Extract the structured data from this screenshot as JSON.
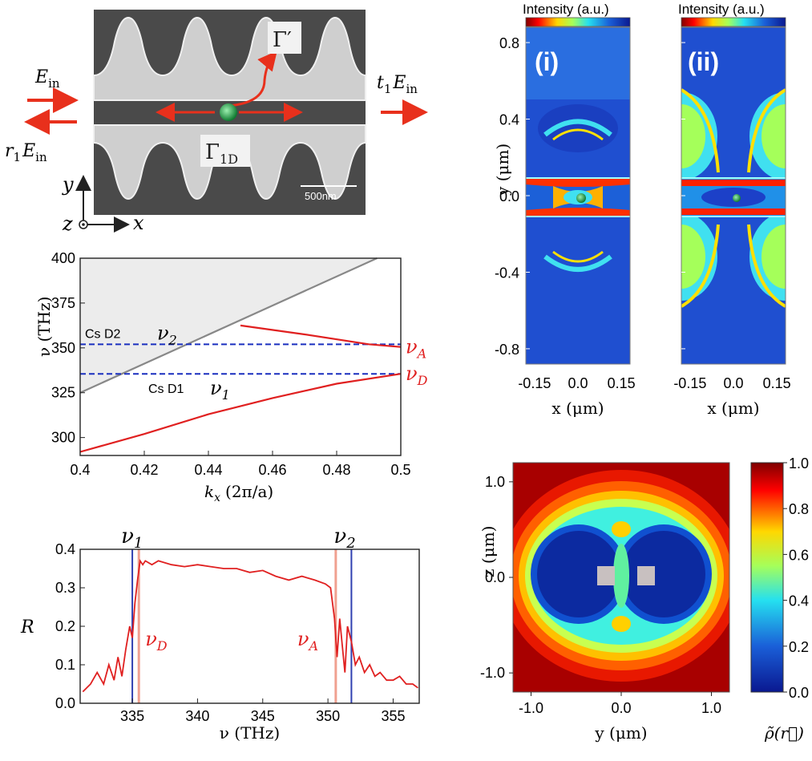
{
  "schematic": {
    "e_in": "E",
    "e_in_sub": "in",
    "r_label": "r",
    "r_sub": "1",
    "r_e": "E",
    "r_e_sub": "in",
    "t_label": "t",
    "t_sub": "1",
    "t_e": "E",
    "t_e_sub": "in",
    "gamma_prime": "Γ′",
    "gamma_1d": "Γ",
    "gamma_1d_sub": "1D",
    "scale_bar": "500nm",
    "axis_y": "y",
    "axis_x": "x",
    "axis_z": "z",
    "colors": {
      "arrow": "#e8301c",
      "atom": "#1fa04a",
      "sem_dark": "#4a4a4a",
      "sem_light": "#c9c9c9"
    }
  },
  "chart_data": [
    {
      "type": "line",
      "id": "band",
      "title": "",
      "xlabel": "k",
      "xlabel_sub": "x",
      "xlabel_unit": "(2π/a)",
      "ylabel": "ν (THz)",
      "xlim": [
        0.4,
        0.5
      ],
      "ylim": [
        290,
        400
      ],
      "xticks": [
        "0.4",
        "0.42",
        "0.44",
        "0.46",
        "0.48",
        "0.5"
      ],
      "yticks": [
        "300",
        "325",
        "350",
        "375",
        "400"
      ],
      "light_line": {
        "x": [
          0.4,
          0.5
        ],
        "y": [
          325,
          406
        ]
      },
      "lower_band": {
        "x": [
          0.4,
          0.42,
          0.44,
          0.46,
          0.48,
          0.5
        ],
        "y": [
          292,
          302,
          313,
          322,
          330,
          335.5
        ]
      },
      "upper_band": {
        "x": [
          0.45,
          0.47,
          0.49,
          0.5
        ],
        "y": [
          362.5,
          357.5,
          352,
          350.5
        ]
      },
      "hlines": [
        {
          "y": 352,
          "label": "Cs D2",
          "sym": "ν",
          "sub": "2"
        },
        {
          "y": 335.5,
          "label": "Cs D1",
          "sym": "ν",
          "sub": "1"
        }
      ],
      "band_labels": [
        {
          "sym": "ν",
          "sub": "A",
          "y": 350.5
        },
        {
          "sym": "ν",
          "sub": "D",
          "y": 335.5
        }
      ]
    },
    {
      "type": "line",
      "id": "reflectance",
      "xlabel": "ν (THz)",
      "ylabel": "R",
      "xlim": [
        331,
        357
      ],
      "ylim": [
        0,
        0.4
      ],
      "xticks": [
        "335",
        "340",
        "345",
        "350",
        "355"
      ],
      "yticks": [
        "0.0",
        "0.1",
        "0.2",
        "0.3",
        "0.4"
      ],
      "series_x": [
        331.2,
        331.8,
        332.3,
        332.8,
        333.2,
        333.6,
        333.9,
        334.2,
        334.5,
        334.8,
        335.0,
        335.2,
        335.4,
        335.6,
        335.8,
        336.0,
        336.5,
        337,
        338,
        339,
        340,
        341,
        342,
        343,
        344,
        345,
        346,
        347,
        348,
        349,
        349.8,
        350.2,
        350.5,
        350.7,
        350.9,
        351.1,
        351.3,
        351.5,
        351.8,
        352.1,
        352.4,
        352.8,
        353.2,
        353.6,
        354,
        354.5,
        355,
        355.5,
        356,
        356.5,
        356.9
      ],
      "series_y": [
        0.03,
        0.05,
        0.08,
        0.05,
        0.1,
        0.06,
        0.12,
        0.07,
        0.14,
        0.2,
        0.17,
        0.26,
        0.32,
        0.37,
        0.36,
        0.37,
        0.36,
        0.37,
        0.36,
        0.355,
        0.36,
        0.355,
        0.35,
        0.35,
        0.34,
        0.345,
        0.33,
        0.32,
        0.33,
        0.32,
        0.31,
        0.3,
        0.22,
        0.12,
        0.22,
        0.15,
        0.08,
        0.2,
        0.16,
        0.1,
        0.12,
        0.08,
        0.1,
        0.07,
        0.08,
        0.06,
        0.06,
        0.07,
        0.05,
        0.05,
        0.04
      ],
      "vlines_blue": [
        {
          "x": 335.0,
          "sym": "ν",
          "sub": "1"
        },
        {
          "x": 351.8,
          "sym": "ν",
          "sub": "2"
        }
      ],
      "vlines_red": [
        {
          "x": 335.5,
          "sym": "ν",
          "sub": "D"
        },
        {
          "x": 350.6,
          "sym": "ν",
          "sub": "A"
        }
      ]
    },
    {
      "type": "heatmap",
      "id": "intensity-maps",
      "colorbar_label": "Intensity (a.u.)",
      "panels": [
        "(i)",
        "(ii)"
      ],
      "xlabel": "x (μm)",
      "ylabel": "y (μm)",
      "xticks": [
        "-0.15",
        "0.0",
        "0.15"
      ],
      "yticks": [
        "0.8",
        "0.4",
        "0.0",
        "-0.4",
        "-0.8"
      ],
      "xlim": [
        -0.18,
        0.18
      ],
      "ylim": [
        -0.88,
        0.88
      ]
    },
    {
      "type": "heatmap",
      "id": "density-map",
      "xlabel": "y (μm)",
      "ylabel": "z (μm)",
      "xticks": [
        "-1.0",
        "0.0",
        "1.0"
      ],
      "yticks": [
        "1.0",
        "0.0",
        "-1.0"
      ],
      "xlim": [
        -1.2,
        1.2
      ],
      "ylim": [
        -1.2,
        1.2
      ],
      "colorbar_ticks": [
        "1.0",
        "0.8",
        "0.6",
        "0.4",
        "0.2",
        "0.0"
      ],
      "colorbar_label": "ρ̃(r⃗)"
    }
  ]
}
